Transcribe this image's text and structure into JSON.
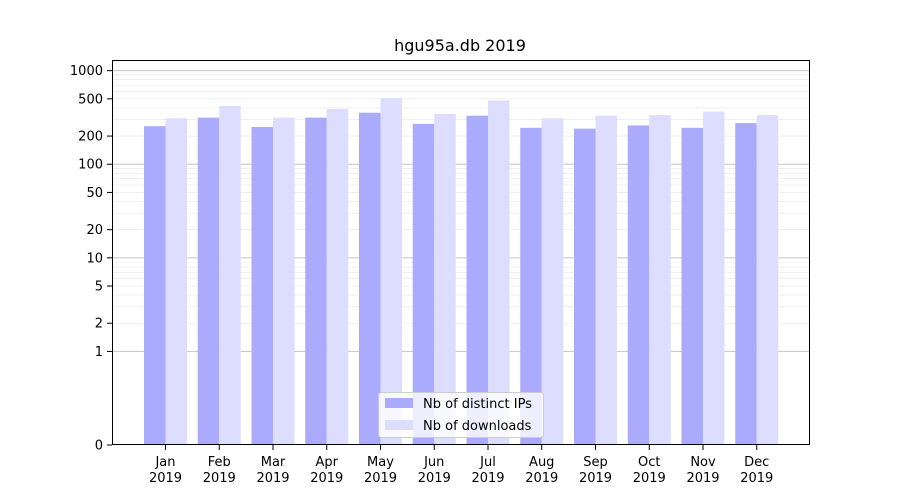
{
  "chart_data": {
    "type": "bar",
    "title": "hgu95a.db 2019",
    "xlabel": "",
    "ylabel": "",
    "yscale": "symlog",
    "ylim": [
      0,
      1300
    ],
    "yticks": [
      0,
      1,
      2,
      5,
      10,
      20,
      50,
      100,
      200,
      500,
      1000
    ],
    "ytick_labels": [
      "0",
      "1",
      "2",
      "5",
      "10",
      "20",
      "50",
      "100",
      "200",
      "500",
      "1000"
    ],
    "categories": [
      "Jan\n2019",
      "Feb\n2019",
      "Mar\n2019",
      "Apr\n2019",
      "May\n2019",
      "Jun\n2019",
      "Jul\n2019",
      "Aug\n2019",
      "Sep\n2019",
      "Oct\n2019",
      "Nov\n2019",
      "Dec\n2019"
    ],
    "category_lines": [
      [
        "Jan",
        "2019"
      ],
      [
        "Feb",
        "2019"
      ],
      [
        "Mar",
        "2019"
      ],
      [
        "Apr",
        "2019"
      ],
      [
        "May",
        "2019"
      ],
      [
        "Jun",
        "2019"
      ],
      [
        "Jul",
        "2019"
      ],
      [
        "Aug",
        "2019"
      ],
      [
        "Sep",
        "2019"
      ],
      [
        "Oct",
        "2019"
      ],
      [
        "Nov",
        "2019"
      ],
      [
        "Dec",
        "2019"
      ]
    ],
    "series": [
      {
        "name": "Nb of distinct IPs",
        "color": "#aaaaff",
        "values": [
          255,
          315,
          250,
          315,
          355,
          270,
          330,
          245,
          240,
          260,
          245,
          275
        ]
      },
      {
        "name": "Nb of downloads",
        "color": "#ddddff",
        "values": [
          310,
          420,
          315,
          390,
          510,
          345,
          480,
          310,
          330,
          335,
          365,
          335
        ]
      }
    ],
    "legend": {
      "position": "lower center"
    },
    "grid": {
      "major": true,
      "minor": true,
      "axis": "y"
    }
  }
}
